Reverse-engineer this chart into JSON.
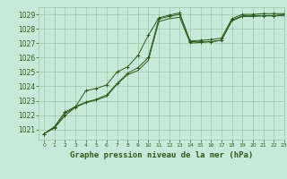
{
  "title": "Graphe pression niveau de la mer (hPa)",
  "xlim": [
    -0.5,
    23
  ],
  "ylim": [
    1020.3,
    1029.5
  ],
  "yticks": [
    1021,
    1022,
    1023,
    1024,
    1025,
    1026,
    1027,
    1028,
    1029
  ],
  "xticks": [
    0,
    1,
    2,
    3,
    4,
    5,
    6,
    7,
    8,
    9,
    10,
    11,
    12,
    13,
    14,
    15,
    16,
    17,
    18,
    19,
    20,
    21,
    22,
    23
  ],
  "bg_color": "#c8e8d8",
  "grid_color": "#99ccaa",
  "line_color": "#2d5a1e",
  "text_color": "#2d5a1e",
  "line1_x": [
    0,
    1,
    2,
    3,
    4,
    5,
    6,
    7,
    8,
    9,
    10,
    11,
    12,
    13,
    14,
    15,
    16,
    17,
    18,
    19,
    20,
    21,
    22,
    23
  ],
  "line1_y": [
    1020.7,
    1021.2,
    1022.2,
    1022.6,
    1022.9,
    1023.1,
    1023.4,
    1024.2,
    1024.9,
    1025.3,
    1026.0,
    1028.7,
    1028.85,
    1029.0,
    1027.15,
    1027.2,
    1027.25,
    1027.35,
    1028.7,
    1029.0,
    1029.0,
    1029.05,
    1029.05,
    1029.05
  ],
  "line2_x": [
    0,
    1,
    2,
    3,
    4,
    5,
    6,
    7,
    8,
    9,
    10,
    11,
    12,
    13,
    14,
    15,
    16,
    17,
    18,
    19,
    20,
    21,
    22,
    23
  ],
  "line2_y": [
    1020.7,
    1021.15,
    1022.1,
    1022.55,
    1022.85,
    1023.05,
    1023.3,
    1024.15,
    1024.8,
    1025.1,
    1025.8,
    1028.5,
    1028.7,
    1028.8,
    1027.0,
    1027.05,
    1027.1,
    1027.2,
    1028.55,
    1028.85,
    1028.85,
    1028.9,
    1028.9,
    1028.9
  ],
  "line3_x": [
    0,
    1,
    2,
    3,
    4,
    5,
    6,
    7,
    8,
    9,
    10,
    11,
    12,
    13,
    14,
    15,
    16,
    17,
    18,
    19,
    20,
    21,
    22,
    23
  ],
  "line3_y": [
    1020.7,
    1021.1,
    1021.95,
    1022.55,
    1023.7,
    1023.85,
    1024.1,
    1025.0,
    1025.35,
    1026.15,
    1027.55,
    1028.75,
    1028.95,
    1029.1,
    1027.1,
    1027.1,
    1027.1,
    1027.2,
    1028.6,
    1028.9,
    1028.9,
    1028.9,
    1028.9,
    1029.0
  ],
  "ylabel_fontsize": 6.0,
  "xlabel_fontsize": 5.0,
  "title_fontsize": 6.5
}
